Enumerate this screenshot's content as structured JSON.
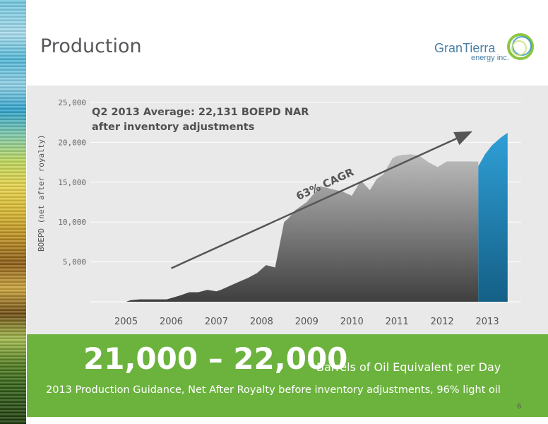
{
  "slide": {
    "title": "Production",
    "logo": {
      "name": "GranTierra",
      "sub": "energy inc.",
      "ring_color": "#8cc63f",
      "ring_color_2": "#2a8fc4"
    },
    "page_number": "6"
  },
  "chart_data": {
    "type": "area",
    "title": "",
    "xlabel": "",
    "ylabel": "BOEPD (net after royalty)",
    "ylim": [
      0,
      25000
    ],
    "yticks": [
      "25,000",
      "20,000",
      "15,000",
      "10,000",
      "5,000"
    ],
    "ytick_values": [
      25000,
      20000,
      15000,
      10000,
      5000
    ],
    "categories": [
      "2005",
      "2006",
      "2007",
      "2008",
      "2009",
      "2010",
      "2011",
      "2012",
      "2013"
    ],
    "grid": true,
    "series": [
      {
        "color": "#8a8a8a",
        "x": [
          2005.0,
          2005.1,
          2005.3,
          2005.6,
          2005.9,
          2006.2,
          2006.4,
          2006.6,
          2006.8,
          2007.0,
          2007.1,
          2007.3,
          2007.5,
          2007.7,
          2007.9,
          2008.1,
          2008.3,
          2008.5,
          2008.6,
          2008.75,
          2009.0,
          2009.3,
          2009.5,
          2009.8,
          2010.0,
          2010.2,
          2010.4,
          2010.55,
          2010.7,
          2010.9,
          2011.0,
          2011.1,
          2011.3,
          2011.5,
          2011.7,
          2011.9,
          2012.1,
          2012.3,
          2012.5,
          2012.7,
          2012.8
        ],
        "y": [
          0,
          200,
          300,
          300,
          300,
          800,
          1200,
          1200,
          1500,
          1300,
          1500,
          2000,
          2500,
          3000,
          3600,
          4600,
          4300,
          10000,
          10500,
          11500,
          12500,
          14500,
          14200,
          13800,
          13300,
          15200,
          14000,
          15400,
          16000,
          18000,
          18300,
          18400,
          18500,
          18300,
          17500,
          16900,
          17600,
          17600,
          17600,
          17600,
          17600
        ]
      },
      {
        "color": "#1d87bd",
        "x": [
          2012.8,
          2012.95,
          2013.1,
          2013.3,
          2013.45
        ],
        "y": [
          17000,
          18500,
          19600,
          20600,
          21200
        ]
      }
    ],
    "annotations": [
      {
        "text": "Q2 2013 Average: 22,131 BOEPD NAR"
      },
      {
        "text": "after inventory adjustments"
      },
      {
        "text": "63% CAGR"
      }
    ],
    "trend_arrow": {
      "from": [
        2006.0,
        4200
      ],
      "to": [
        2012.6,
        21200
      ]
    }
  },
  "banner": {
    "big": "21,000 – 22,000",
    "big_sub": "Barrels of Oil Equivalent per Day",
    "line": "2013 Production Guidance, Net After Royalty before inventory adjustments, 96% light oil",
    "color": "#6cb33e"
  }
}
